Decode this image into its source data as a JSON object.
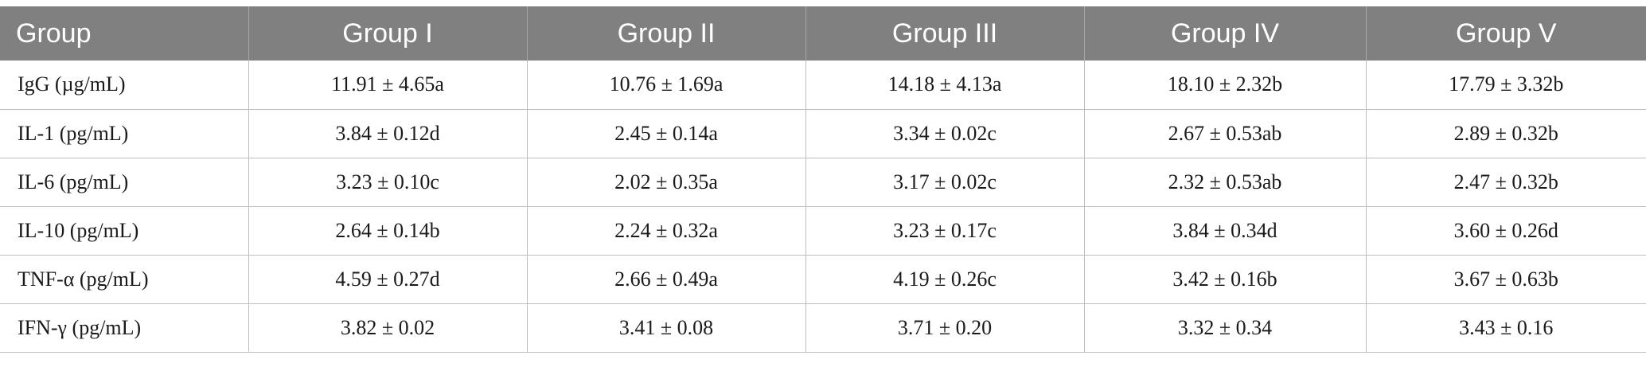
{
  "table": {
    "headers": [
      "Group",
      "Group I",
      "Group II",
      "Group III",
      "Group IV",
      "Group V"
    ],
    "rows": [
      [
        "IgG (µg/mL)",
        "11.91 ± 4.65a",
        "10.76 ± 1.69a",
        "14.18 ± 4.13a",
        "18.10 ± 2.32b",
        "17.79 ± 3.32b"
      ],
      [
        "IL-1 (pg/mL)",
        "3.84 ± 0.12d",
        "2.45 ± 0.14a",
        "3.34 ± 0.02c",
        "2.67 ± 0.53ab",
        "2.89 ± 0.32b"
      ],
      [
        "IL-6 (pg/mL)",
        "3.23 ± 0.10c",
        "2.02 ± 0.35a",
        "3.17 ± 0.02c",
        "2.32 ± 0.53ab",
        "2.47 ± 0.32b"
      ],
      [
        "IL-10 (pg/mL)",
        "2.64 ± 0.14b",
        "2.24 ± 0.32a",
        "3.23 ± 0.17c",
        "3.84 ± 0.34d",
        "3.60 ± 0.26d"
      ],
      [
        "TNF-α (pg/mL)",
        "4.59 ± 0.27d",
        "2.66 ± 0.49a",
        "4.19 ± 0.26c",
        "3.42 ± 0.16b",
        "3.67 ± 0.63b"
      ],
      [
        "IFN-γ (pg/mL)",
        "3.82 ± 0.02",
        "3.41 ± 0.08",
        "3.71 ± 0.20",
        "3.32 ± 0.34",
        "3.43 ± 0.16"
      ]
    ]
  },
  "colors": {
    "header_bg": "#808080",
    "header_text": "#ffffff",
    "rule": "#bdbdbd"
  }
}
